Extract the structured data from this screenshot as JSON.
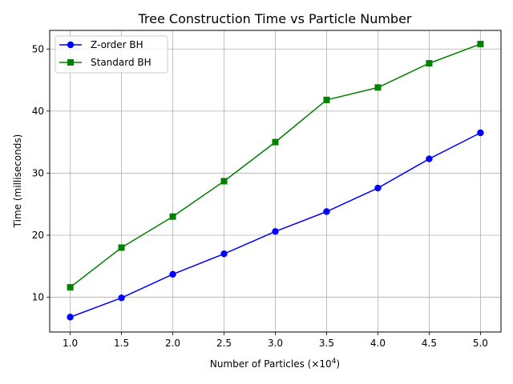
{
  "chart_data": {
    "type": "line",
    "title": "Tree Construction Time vs Particle Number",
    "xlabel": "Number of Particles (×10",
    "xlabel_exponent": "4",
    "xlabel_suffix": ")",
    "ylabel": "Time (milliseconds)",
    "x": [
      1.0,
      1.5,
      2.0,
      2.5,
      3.0,
      3.5,
      4.0,
      4.5,
      5.0
    ],
    "xlim": [
      0.8,
      5.2
    ],
    "ylim": [
      4.4,
      53.0
    ],
    "xticks": [
      1.0,
      1.5,
      2.0,
      2.5,
      3.0,
      3.5,
      4.0,
      4.5,
      5.0
    ],
    "xtick_labels": [
      "1.0",
      "1.5",
      "2.0",
      "2.5",
      "3.0",
      "3.5",
      "4.0",
      "4.5",
      "5.0"
    ],
    "yticks": [
      10,
      20,
      30,
      40,
      50
    ],
    "ytick_labels": [
      "10",
      "20",
      "30",
      "40",
      "50"
    ],
    "grid": true,
    "legend_position": "upper-left",
    "series": [
      {
        "name": "Z-order BH",
        "color": "#0000ff",
        "marker": "circle",
        "values": [
          6.8,
          9.9,
          13.7,
          17.0,
          20.6,
          23.8,
          27.6,
          32.3,
          36.5
        ]
      },
      {
        "name": "Standard BH",
        "color": "#008000",
        "marker": "square",
        "values": [
          11.6,
          18.0,
          23.0,
          28.7,
          35.0,
          41.8,
          43.8,
          47.7,
          50.8
        ]
      }
    ]
  }
}
